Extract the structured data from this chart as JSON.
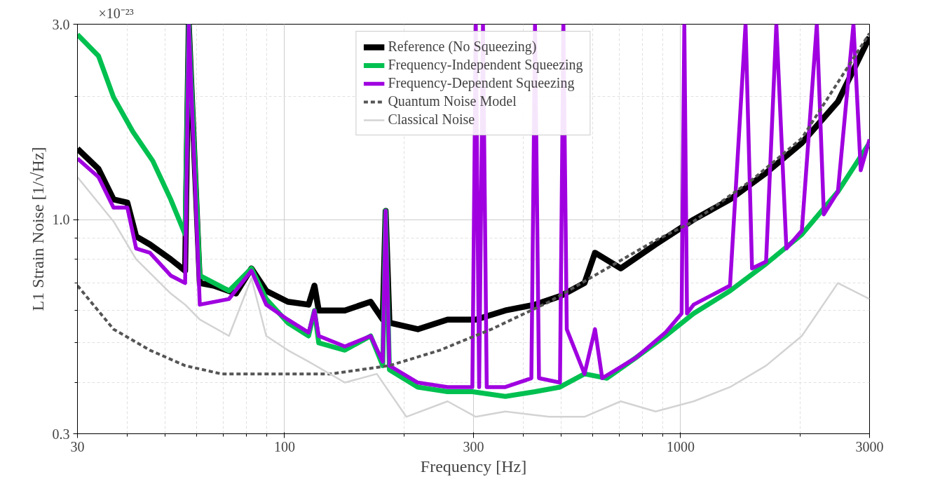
{
  "chart_data": {
    "type": "line",
    "xlabel": "Frequency [Hz]",
    "ylabel": "L1 Strain Noise [1/√Hz]",
    "annotations": [
      "×10⁻²³"
    ],
    "log": "xy",
    "grid": true,
    "legend": "top",
    "xlim": [
      30,
      3000
    ],
    "xticks": [
      30,
      100,
      300,
      1000,
      3000
    ],
    "ylim": [
      0.3,
      3.0
    ],
    "yticks": [
      {
        "value": 0.3,
        "label": "0.3"
      },
      {
        "value": 1.0,
        "label": "1.0"
      },
      {
        "value": 3.0,
        "label": "3.0"
      }
    ],
    "series": [
      {
        "name": "Reference (No Squeezing)",
        "color": "#000000",
        "x": [
          30,
          33.9,
          37,
          40.1,
          42.2,
          45.7,
          51.6,
          56.1,
          57.3,
          61.1,
          66.2,
          75.4,
          82.5,
          89.9,
          101.9,
          115,
          119,
          122,
          142,
          165,
          177,
          180,
          184,
          217,
          258,
          304,
          361,
          429,
          496,
          572,
          608,
          706,
          865,
          1079,
          1333,
          1644,
          2024,
          2496,
          3000
        ],
        "values": [
          1.49,
          1.33,
          1.12,
          1.1,
          0.91,
          0.87,
          0.8,
          0.75,
          3.0,
          0.7,
          0.69,
          0.66,
          0.76,
          0.67,
          0.63,
          0.62,
          0.69,
          0.6,
          0.6,
          0.63,
          0.57,
          1.05,
          0.56,
          0.54,
          0.57,
          0.57,
          0.6,
          0.62,
          0.65,
          0.7,
          0.83,
          0.76,
          0.87,
          1.0,
          1.12,
          1.3,
          1.54,
          1.94,
          2.79
        ]
      },
      {
        "name": "Frequency-Independent Squeezing",
        "color": "#00c050",
        "x": [
          30,
          33.9,
          37,
          41.4,
          46.5,
          51.6,
          56.1,
          57.3,
          61.1,
          72.4,
          82.5,
          89.9,
          101.9,
          115,
          119,
          122,
          142,
          165,
          177,
          180,
          184,
          217,
          258,
          298,
          361,
          429,
          496,
          572,
          651,
          771,
          916,
          1079,
          1333,
          1644,
          2024,
          2496,
          3000
        ],
        "values": [
          2.83,
          2.51,
          1.99,
          1.64,
          1.39,
          1.12,
          0.92,
          3.0,
          0.73,
          0.67,
          0.76,
          0.64,
          0.56,
          0.52,
          0.6,
          0.5,
          0.48,
          0.52,
          0.44,
          1.05,
          0.43,
          0.39,
          0.38,
          0.38,
          0.37,
          0.38,
          0.39,
          0.42,
          0.41,
          0.46,
          0.52,
          0.59,
          0.67,
          0.78,
          0.92,
          1.17,
          1.54
        ]
      },
      {
        "name": "Frequency-Dependent Squeezing",
        "color": "#a000e0",
        "x": [
          30,
          33.9,
          37,
          40.1,
          42.2,
          45.7,
          51.6,
          56.1,
          57.3,
          61.1,
          72.4,
          82.5,
          89.9,
          101.9,
          115,
          119,
          122,
          142,
          165,
          177,
          180,
          184,
          217,
          258,
          298,
          304,
          310,
          317,
          324,
          361,
          420,
          429,
          439,
          496,
          506,
          516,
          572,
          608,
          634,
          771,
          916,
          1006,
          1022,
          1038,
          1079,
          1333,
          1459,
          1515,
          1644,
          1745,
          1850,
          2024,
          2208,
          2300,
          2496,
          2732,
          2850,
          3000
        ],
        "values": [
          1.41,
          1.27,
          1.07,
          1.07,
          0.85,
          0.83,
          0.73,
          0.7,
          3.0,
          0.62,
          0.64,
          0.75,
          0.62,
          0.57,
          0.53,
          0.6,
          0.52,
          0.49,
          0.52,
          0.45,
          1.05,
          0.44,
          0.4,
          0.39,
          0.39,
          3.0,
          0.39,
          3.0,
          0.39,
          0.39,
          0.41,
          3.0,
          0.41,
          0.4,
          3.0,
          0.54,
          0.42,
          0.54,
          0.41,
          0.46,
          0.53,
          0.59,
          3.0,
          0.59,
          0.62,
          0.69,
          3.0,
          0.76,
          0.79,
          3.0,
          0.85,
          0.94,
          3.0,
          1.03,
          1.17,
          3.0,
          1.32,
          1.57
        ]
      },
      {
        "name": "Quantum Noise Model",
        "color": "#555555",
        "line_style": "dashed",
        "x": [
          30,
          37,
          45.7,
          56.1,
          69.3,
          93.7,
          131,
          184,
          247,
          333,
          466,
          651,
          865,
          1079,
          1515,
          2024,
          3000
        ],
        "values": [
          0.69,
          0.54,
          0.48,
          0.44,
          0.42,
          0.42,
          0.42,
          0.44,
          0.48,
          0.54,
          0.63,
          0.76,
          0.89,
          0.99,
          1.25,
          1.58,
          2.85
        ]
      },
      {
        "name": "Classical Noise",
        "color": "#d3d3d3",
        "x": [
          30,
          37,
          42.2,
          51.6,
          56.1,
          61.1,
          72.4,
          82.5,
          89.9,
          101.9,
          115,
          142,
          171,
          203,
          258,
          304,
          361,
          466,
          572,
          706,
          865,
          1079,
          1333,
          1644,
          2024,
          2496,
          3000
        ],
        "values": [
          1.27,
          0.99,
          0.8,
          0.66,
          0.62,
          0.57,
          0.52,
          0.72,
          0.52,
          0.48,
          0.45,
          0.4,
          0.42,
          0.33,
          0.36,
          0.33,
          0.34,
          0.33,
          0.33,
          0.36,
          0.34,
          0.36,
          0.39,
          0.44,
          0.52,
          0.7,
          0.64
        ]
      }
    ]
  }
}
